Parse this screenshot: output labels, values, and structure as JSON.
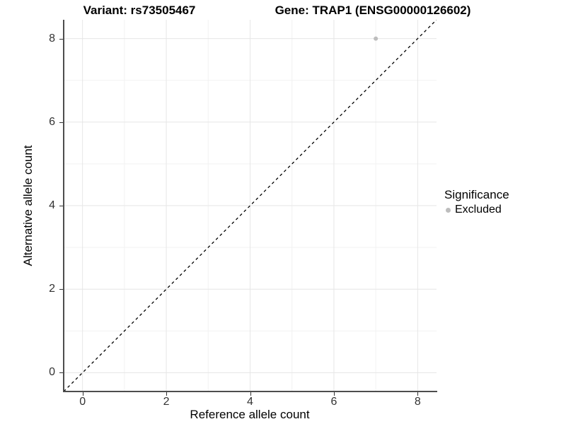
{
  "titles": {
    "variant": "Variant: rs73505467",
    "gene": "Gene: TRAP1 (ENSG00000126602)"
  },
  "legend": {
    "title": "Significance",
    "items": [
      {
        "label": "Excluded",
        "color": "#bdbdbd"
      }
    ]
  },
  "colors": {
    "background": "#ffffff",
    "grid_major": "#e6e6e6",
    "grid_minor": "#f2f2f2",
    "axis_line": "#4d4d4d",
    "tick_text": "#333333",
    "point": "#bdbdbd",
    "reference_line": "#000000"
  },
  "chart_data": {
    "type": "scatter",
    "title": "Variant: rs73505467    Gene: TRAP1 (ENSG00000126602)",
    "xlabel": "Reference allele count",
    "ylabel": "Alternative allele count",
    "xlim": [
      -0.45,
      8.45
    ],
    "ylim": [
      -0.45,
      8.45
    ],
    "x_ticks": [
      0,
      2,
      4,
      6,
      8
    ],
    "y_ticks": [
      0,
      2,
      4,
      6,
      8
    ],
    "x_minor_ticks": [
      1,
      3,
      5,
      7
    ],
    "y_minor_ticks": [
      1,
      3,
      5,
      7
    ],
    "grid": true,
    "legend_position": "right",
    "series": [
      {
        "name": "Excluded",
        "color": "#bdbdbd",
        "points": [
          {
            "x": 7,
            "y": 8
          }
        ]
      }
    ],
    "reference_line": {
      "type": "identity",
      "equation": "y = x",
      "style": "dashed",
      "color": "#000000"
    }
  }
}
